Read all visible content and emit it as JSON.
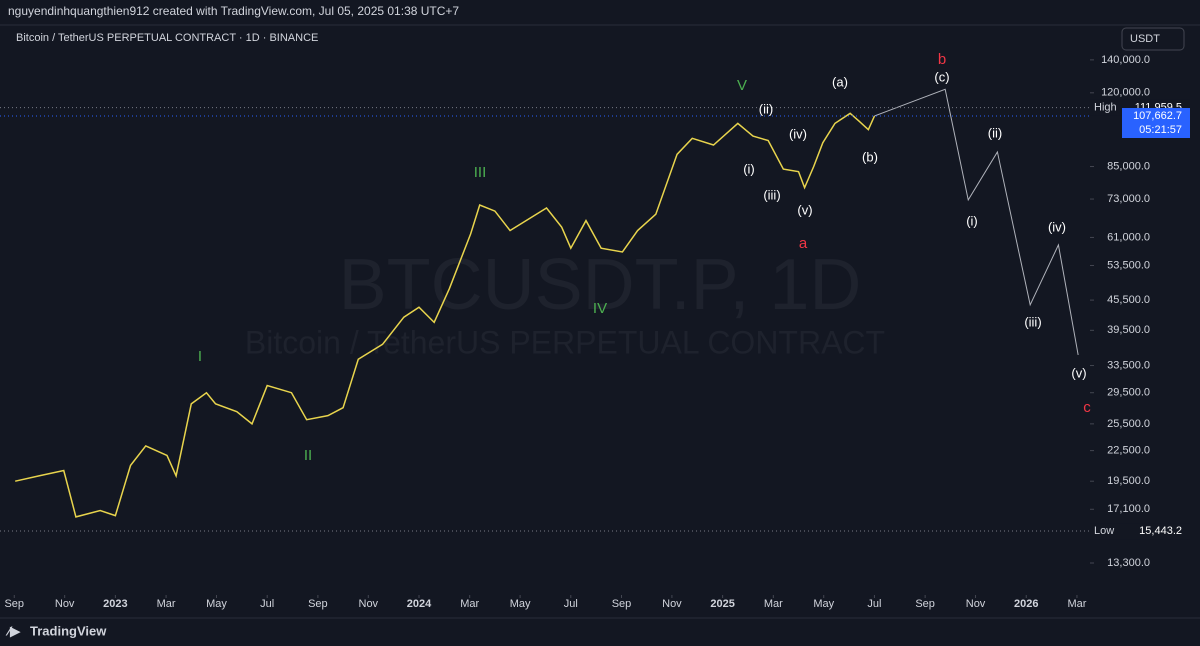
{
  "header": "nguyendinhquangthien912 created with TradingView.com, Jul 05, 2025 01:38 UTC+7",
  "chart_data": {
    "type": "line",
    "title": "Bitcoin / TetherUS PERPETUAL CONTRACT · 1D · BINANCE",
    "watermark": "BTCUSDT.P, 1D",
    "watermark_subtitle": "Bitcoin / TetherUS PERPETUAL CONTRACT",
    "currency": "USDT",
    "log_scale": true,
    "xlim": [
      2022.62,
      2026.21
    ],
    "xticks": [
      {
        "value": 2022.667,
        "label": "Sep"
      },
      {
        "value": 2022.833,
        "label": "Nov"
      },
      2023,
      {
        "value": 2023.167,
        "label": "Mar"
      },
      {
        "value": 2023.333,
        "label": "May"
      },
      {
        "value": 2023.5,
        "label": "Jul"
      },
      {
        "value": 2023.667,
        "label": "Sep"
      },
      {
        "value": 2023.833,
        "label": "Nov"
      },
      2024,
      {
        "value": 2024.167,
        "label": "Mar"
      },
      {
        "value": 2024.333,
        "label": "May"
      },
      {
        "value": 2024.5,
        "label": "Jul"
      },
      {
        "value": 2024.667,
        "label": "Sep"
      },
      {
        "value": 2024.833,
        "label": "Nov"
      },
      2025,
      {
        "value": 2025.167,
        "label": "Mar"
      },
      {
        "value": 2025.333,
        "label": "May"
      },
      {
        "value": 2025.5,
        "label": "Jul"
      },
      {
        "value": 2025.667,
        "label": "Sep"
      },
      {
        "value": 2025.833,
        "label": "Nov"
      },
      2026,
      {
        "value": 2026.167,
        "label": "Mar"
      }
    ],
    "ylim": [
      11450,
      161000
    ],
    "yticks": [
      {
        "value": 140000,
        "label": "140,000.0"
      },
      {
        "value": 120000,
        "label": "120,000.0"
      },
      {
        "value": 85000,
        "label": "85,000.0"
      },
      {
        "value": 73000,
        "label": "73,000.0"
      },
      {
        "value": 61000,
        "label": "61,000.0"
      },
      {
        "value": 53500,
        "label": "53,500.0"
      },
      {
        "value": 45500,
        "label": "45,500.0"
      },
      {
        "value": 39500,
        "label": "39,500.0"
      },
      {
        "value": 33500,
        "label": "33,500.0"
      },
      {
        "value": 29500,
        "label": "29,500.0"
      },
      {
        "value": 25500,
        "label": "25,500.0"
      },
      {
        "value": 22500,
        "label": "22,500.0"
      },
      {
        "value": 19500,
        "label": "19,500.0"
      },
      {
        "value": 17100,
        "label": "17,100.0"
      },
      {
        "value": 13300,
        "label": "13,300.0"
      }
    ],
    "series": [
      {
        "color": "#e8d44d",
        "x": [
          2022.67,
          2022.75,
          2022.83,
          2022.87,
          2022.95,
          2023.0,
          2023.05,
          2023.1,
          2023.17,
          2023.2,
          2023.25,
          2023.3,
          2023.33,
          2023.4,
          2023.45,
          2023.5,
          2023.58,
          2023.63,
          2023.7,
          2023.75,
          2023.8,
          2023.88,
          2023.95,
          2024.0,
          2024.05,
          2024.1,
          2024.17,
          2024.2,
          2024.25,
          2024.3,
          2024.37,
          2024.42,
          2024.47,
          2024.5,
          2024.55,
          2024.6,
          2024.67,
          2024.72,
          2024.78,
          2024.85,
          2024.9,
          2024.97,
          2025.05,
          2025.1,
          2025.15,
          2025.2,
          2025.25,
          2025.27,
          2025.3,
          2025.33,
          2025.37,
          2025.42,
          2025.45,
          2025.48,
          2025.5
        ],
        "values": [
          19500,
          20000,
          20500,
          16500,
          17000,
          16600,
          21000,
          23000,
          22000,
          20000,
          28000,
          29500,
          28000,
          27000,
          25500,
          30500,
          29500,
          26000,
          26500,
          27500,
          34500,
          37000,
          42000,
          44000,
          41000,
          48000,
          62000,
          71000,
          69000,
          63000,
          67000,
          70000,
          64000,
          58000,
          66000,
          58000,
          57000,
          63000,
          68000,
          90000,
          97000,
          94000,
          104000,
          98000,
          96000,
          84000,
          83000,
          77000,
          85000,
          95000,
          104000,
          109000,
          105000,
          101000,
          107662.7
        ]
      },
      {
        "color": "#b0b3bb",
        "x": [
          2025.5,
          2025.733,
          2025.809,
          2025.905,
          2026.013,
          2026.106,
          2026.171
        ],
        "values": [
          107662.7,
          122000,
          72700,
          91000,
          44500,
          58900,
          35200
        ]
      }
    ],
    "price_levels": [
      {
        "label": "High",
        "value": 111959.5,
        "value_label": "111,959.5"
      },
      {
        "value": 107662.7,
        "value_label": "107,662.7",
        "countdown": "05:21:57"
      },
      {
        "label": "Low",
        "value": 15443.2,
        "value_label": "15,443.2"
      }
    ],
    "annotations": [
      "I",
      "II",
      "III",
      "IV",
      "V",
      "(i)",
      "(ii)",
      "(iii)",
      "(iv)",
      "(v)",
      "a",
      "(a)",
      "(b)",
      "(c)",
      "b",
      "(ii)",
      "(i)",
      "(iv)",
      "(iii)",
      "(v)",
      "c"
    ]
  },
  "footer": "TradingView"
}
